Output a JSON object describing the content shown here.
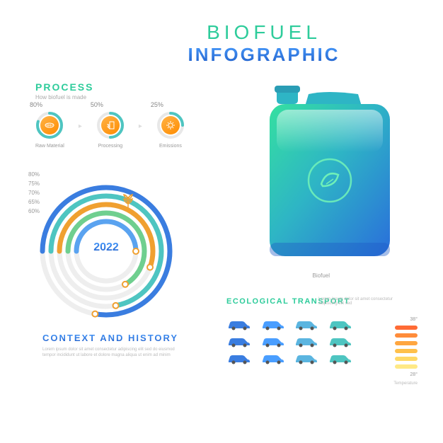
{
  "title": {
    "line1": "BIOFUEL",
    "line2": "INFOGRAPHIC",
    "color1": "#2ecc9b",
    "grad_top": "#4a9eff",
    "grad_bot": "#1e5bc6"
  },
  "process": {
    "title": "PROCESS",
    "subtitle": "How biofuel is made",
    "steps": [
      {
        "pct": "80%",
        "value": 80,
        "label": "Raw Material",
        "icon": "corn",
        "color": "#f7a733"
      },
      {
        "pct": "50%",
        "value": 50,
        "label": "Processing",
        "icon": "factory",
        "color": "#f7a733"
      },
      {
        "pct": "25%",
        "value": 25,
        "label": "Emissions",
        "icon": "sun",
        "color": "#f7a733"
      }
    ],
    "ring_colors": {
      "track": "#e8e8e8",
      "fill_start": "#5bb5ff",
      "fill_end": "#2ecc9b"
    }
  },
  "radial": {
    "year": "2022",
    "rings": [
      {
        "label": "80%",
        "value": 280,
        "color": "#3a7de0",
        "r": 90
      },
      {
        "label": "75%",
        "value": 260,
        "color": "#4ec5c1",
        "r": 78
      },
      {
        "label": "70%",
        "value": 200,
        "color": "#f0a030",
        "r": 66
      },
      {
        "label": "65%",
        "value": 240,
        "color": "#6fcf8f",
        "r": 54
      },
      {
        "label": "60%",
        "value": 180,
        "color": "#5aa3f0",
        "r": 42
      }
    ],
    "track_color": "#eeeeee",
    "marker_color": "#f0a030"
  },
  "context": {
    "title": "CONTEXT AND HISTORY",
    "body": "Lorem ipsum dolor sit amet consectetur adipiscing elit sed do eiusmod tempor incididunt ut labore et dolore magna aliqua ut enim ad minim"
  },
  "canister": {
    "label": "Biofuel",
    "grad_top": "#35e0a0",
    "grad_mid": "#2eb5c5",
    "grad_bot": "#2a6edb",
    "leaf_circle": "#35e0a0"
  },
  "ecological": {
    "title": "ECOLOGICAL TRANSPORT",
    "body": "Lorem ipsum dolor sit amet consectetur adipiscing elit sed",
    "cars": [
      "#3a7de0",
      "#4a9eff",
      "#5bb5e0",
      "#4ec5c1",
      "#3a7de0",
      "#4a9eff",
      "#5bb5e0",
      "#4ec5c1",
      "#3a7de0",
      "#4a9eff",
      "#5bb5e0",
      "#4ec5c1"
    ],
    "temperature": {
      "top": "38°",
      "bot": "28°",
      "title": "Temperature",
      "bars": [
        "#ff6b35",
        "#ff8c3a",
        "#ffa640",
        "#ffc04a",
        "#ffd966",
        "#ffe985"
      ]
    }
  }
}
